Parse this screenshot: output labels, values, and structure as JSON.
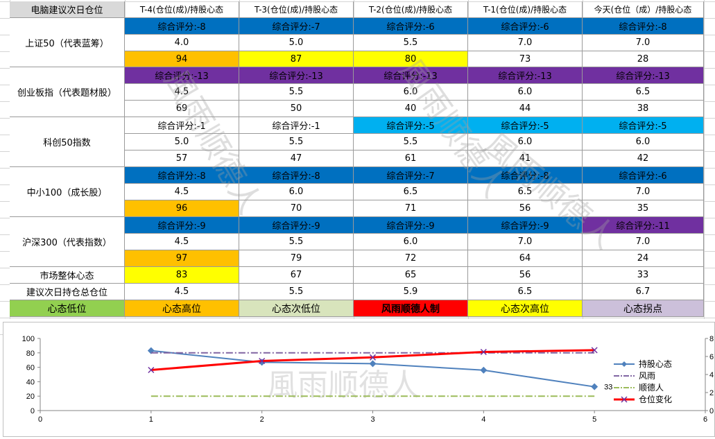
{
  "table": {
    "corner": "电脑建议次日仓位",
    "headers": [
      "T-4(仓位(成)/持股心态",
      "T-3(仓位(成)/持股心态",
      "T-2(仓位(成)/持股心态",
      "T-1(仓位(成)/持股心态",
      "今天(仓位（成）/持股心态"
    ],
    "indices": [
      {
        "name": "上证50（代表蓝筹）",
        "scores": [
          "综合评分:-8",
          "综合评分:-7",
          "综合评分:-6",
          "综合评分:-6",
          "综合评分:-8"
        ],
        "score_colors": [
          "#0070c0",
          "#0070c0",
          "#0070c0",
          "#0070c0",
          "#0070c0"
        ],
        "positions": [
          "4.0",
          "5.0",
          "5.5",
          "7.0",
          "7.0"
        ],
        "mood": [
          "94",
          "87",
          "80",
          "73",
          "28"
        ],
        "mood_colors": [
          "#ffc000",
          "#ffff00",
          "#ffff00",
          "#ffffff",
          "#ffffff"
        ]
      },
      {
        "name": "创业板指（代表题材股）",
        "scores": [
          "综合评分:-13",
          "综合评分:-13",
          "综合评分:-13",
          "综合评分:-13",
          "综合评分:-13"
        ],
        "score_colors": [
          "#7030a0",
          "#7030a0",
          "#7030a0",
          "#7030a0",
          "#7030a0"
        ],
        "positions": [
          "4.5",
          "5.5",
          "6.0",
          "6.0",
          "6.5"
        ],
        "mood": [
          "69",
          "50",
          "40",
          "44",
          "38"
        ],
        "mood_colors": [
          "#ffffff",
          "#ffffff",
          "#ffffff",
          "#ffffff",
          "#ffffff"
        ]
      },
      {
        "name": "科创50指数",
        "scores": [
          "综合评分:-1",
          "综合评分:-1",
          "综合评分:-5",
          "综合评分:-5",
          "综合评分:-5"
        ],
        "score_colors": [
          "#ffffff",
          "#ffffff",
          "#00b0f0",
          "#00b0f0",
          "#00b0f0"
        ],
        "positions": [
          "5.0",
          "5.5",
          "5.5",
          "6.0",
          "6.0"
        ],
        "mood": [
          "57",
          "47",
          "61",
          "41",
          "42"
        ],
        "mood_colors": [
          "#ffffff",
          "#ffffff",
          "#ffffff",
          "#ffffff",
          "#ffffff"
        ]
      },
      {
        "name": "中小100（成长股）",
        "scores": [
          "综合评分:-8",
          "综合评分:-8",
          "综合评分:-7",
          "综合评分:-8",
          "综合评分:-6"
        ],
        "score_colors": [
          "#0070c0",
          "#0070c0",
          "#0070c0",
          "#0070c0",
          "#0070c0"
        ],
        "positions": [
          "4.5",
          "6.0",
          "6.5",
          "6.5",
          "7.0"
        ],
        "mood": [
          "96",
          "70",
          "71",
          "56",
          "35"
        ],
        "mood_colors": [
          "#ffc000",
          "#ffffff",
          "#ffffff",
          "#ffffff",
          "#ffffff"
        ]
      },
      {
        "name": "沪深300（代表指数）",
        "scores": [
          "综合评分:-9",
          "综合评分:-9",
          "综合评分:-9",
          "综合评分:-9",
          "综合评分:-11"
        ],
        "score_colors": [
          "#0070c0",
          "#0070c0",
          "#0070c0",
          "#0070c0",
          "#7030a0"
        ],
        "positions": [
          "4.5",
          "5.5",
          "6.0",
          "7.0",
          "7.0"
        ],
        "mood": [
          "97",
          "79",
          "72",
          "64",
          "24"
        ],
        "mood_colors": [
          "#ffc000",
          "#ffffff",
          "#ffffff",
          "#ffffff",
          "#ffffff"
        ]
      }
    ],
    "overall": {
      "label": "市场整体心态",
      "values": [
        "83",
        "67",
        "65",
        "56",
        "33"
      ],
      "colors": [
        "#ffff00",
        "#ffffff",
        "#ffffff",
        "#ffffff",
        "#ffffff"
      ]
    },
    "suggest": {
      "label": "建议次日持仓总仓位",
      "values": [
        "4.5",
        "5.5",
        "5.9",
        "6.5",
        "6.7"
      ]
    },
    "legend": [
      {
        "label": "心态低位",
        "color": "#92d050"
      },
      {
        "label": "心态高位",
        "color": "#ffc000"
      },
      {
        "label": "心态次低位",
        "color": "#d8e4bc"
      },
      {
        "label": "风雨顺德人制",
        "color": "#ff0000"
      },
      {
        "label": "心态次高位",
        "color": "#ffff00"
      },
      {
        "label": "心态拐点",
        "color": "#ccc0da"
      }
    ]
  },
  "watermark": "風雨顺德人",
  "chart_data": {
    "type": "line",
    "x": [
      1,
      2,
      3,
      4,
      5
    ],
    "xlim": [
      0,
      6
    ],
    "ylim": [
      0,
      100
    ],
    "y2lim": [
      0,
      8
    ],
    "x_ticks": [
      "0",
      "1",
      "2",
      "3",
      "4",
      "5",
      "6"
    ],
    "y_ticks": [
      "0",
      "20",
      "40",
      "60",
      "80",
      "100"
    ],
    "y2_ticks": [
      "0",
      "2.",
      "4.",
      "6.",
      "8."
    ],
    "series": [
      {
        "name": "持股心态",
        "axis": "left",
        "values": [
          83,
          67,
          65,
          56,
          33
        ],
        "color": "#4f81bd",
        "marker": "diamond"
      },
      {
        "name": "风雨",
        "axis": "left",
        "values": [
          80,
          80,
          80,
          80,
          80
        ],
        "color": "#8064a2",
        "dash": "dashdot"
      },
      {
        "name": "顺德人",
        "axis": "left",
        "values": [
          20,
          20,
          20,
          20,
          20
        ],
        "color": "#9bbb59",
        "dash": "dashdot"
      },
      {
        "name": "仓位变化",
        "axis": "right",
        "values": [
          4.5,
          5.5,
          5.9,
          6.5,
          6.7
        ],
        "color": "#ff0000",
        "marker": "x"
      }
    ],
    "data_label": "33",
    "legend_position": "right"
  }
}
